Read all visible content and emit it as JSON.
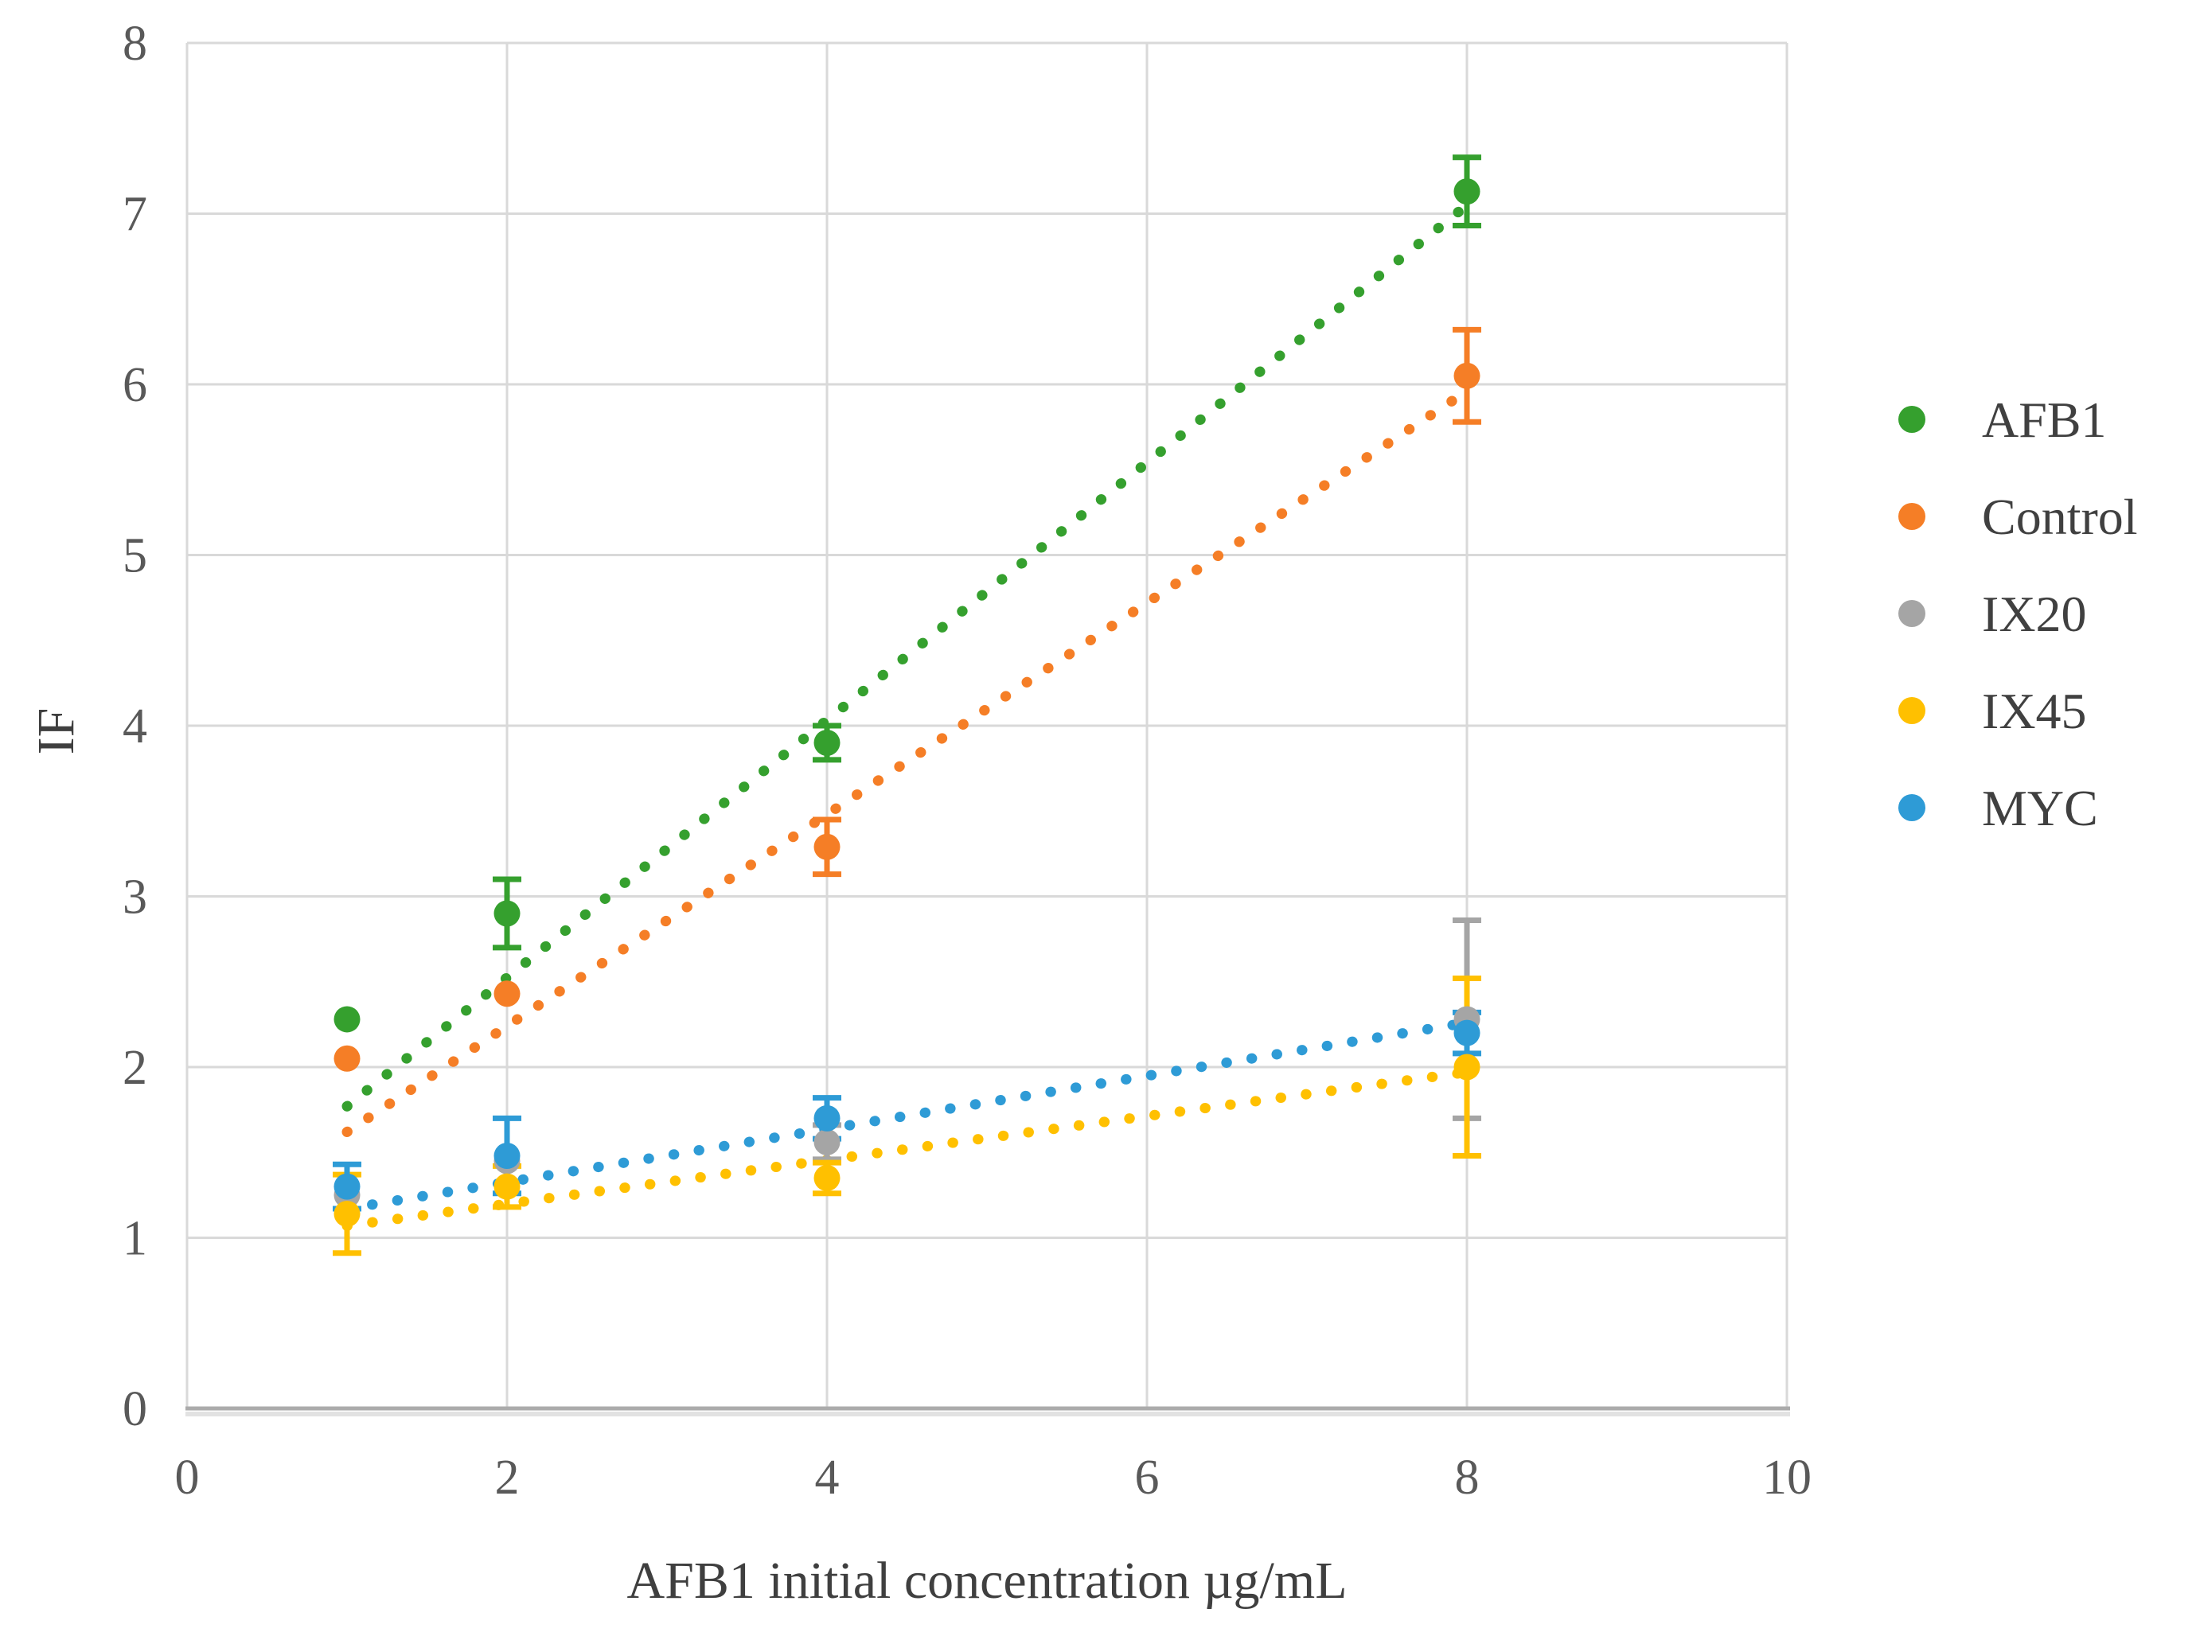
{
  "chart_data": {
    "type": "scatter",
    "title": "",
    "xlabel": "AFB1 initial concentration µg/mL",
    "ylabel": "IF",
    "x": [
      1,
      2,
      4,
      8
    ],
    "xlim": [
      0,
      10
    ],
    "ylim": [
      0,
      8
    ],
    "x_ticks": [
      "0",
      "2",
      "4",
      "6",
      "8",
      "10"
    ],
    "x_tick_values": [
      0,
      2,
      4,
      6,
      8,
      10
    ],
    "y_ticks": [
      "0",
      "1",
      "2",
      "3",
      "4",
      "5",
      "6",
      "7",
      "8"
    ],
    "y_tick_values": [
      0,
      1,
      2,
      3,
      4,
      5,
      6,
      7,
      8
    ],
    "grid": true,
    "legend_position": "right",
    "series": [
      {
        "name": "AFB1",
        "color": "#35A02E",
        "marker": "circle",
        "values": [
          2.28,
          2.9,
          3.9,
          7.13
        ],
        "errors": [
          0,
          0.2,
          0.1,
          0.2
        ],
        "trendline": {
          "style": "dotted",
          "x": [
            1,
            8
          ],
          "y": [
            1.77,
            7.05
          ]
        }
      },
      {
        "name": "Control",
        "color": "#F57E26",
        "marker": "circle",
        "values": [
          2.05,
          2.43,
          3.29,
          6.05
        ],
        "errors": [
          0,
          0,
          0.16,
          0.27
        ],
        "trendline": {
          "style": "dotted",
          "x": [
            1,
            8
          ],
          "y": [
            1.62,
            5.96
          ]
        }
      },
      {
        "name": "IX20",
        "color": "#A5A5A5",
        "marker": "circle",
        "values": [
          1.25,
          1.45,
          1.56,
          2.28
        ],
        "errors": [
          0,
          0,
          0.1,
          0.58
        ],
        "trendline": null
      },
      {
        "name": "IX45",
        "color": "#FFC000",
        "marker": "circle",
        "values": [
          1.14,
          1.3,
          1.35,
          2.0
        ],
        "errors": [
          0.23,
          0.12,
          0.09,
          0.52
        ],
        "trendline": {
          "style": "dotted",
          "x": [
            1,
            8
          ],
          "y": [
            1.07,
            1.97
          ]
        }
      },
      {
        "name": "MYC",
        "color": "#2E9BD6",
        "marker": "circle",
        "values": [
          1.3,
          1.48,
          1.7,
          2.2
        ],
        "errors": [
          0.13,
          0.22,
          0.12,
          0.12
        ],
        "trendline": {
          "style": "dotted",
          "x": [
            1,
            8
          ],
          "y": [
            1.17,
            2.26
          ]
        }
      }
    ],
    "colors": {
      "gridline": "#D9D9D9",
      "axis_line": "#ABABAB",
      "axis_shadow": "#DCDCDC",
      "tick_label": "#595959",
      "axis_title": "#3F3F3F",
      "legend_text": "#404040",
      "background": "#FFFFFF"
    }
  }
}
